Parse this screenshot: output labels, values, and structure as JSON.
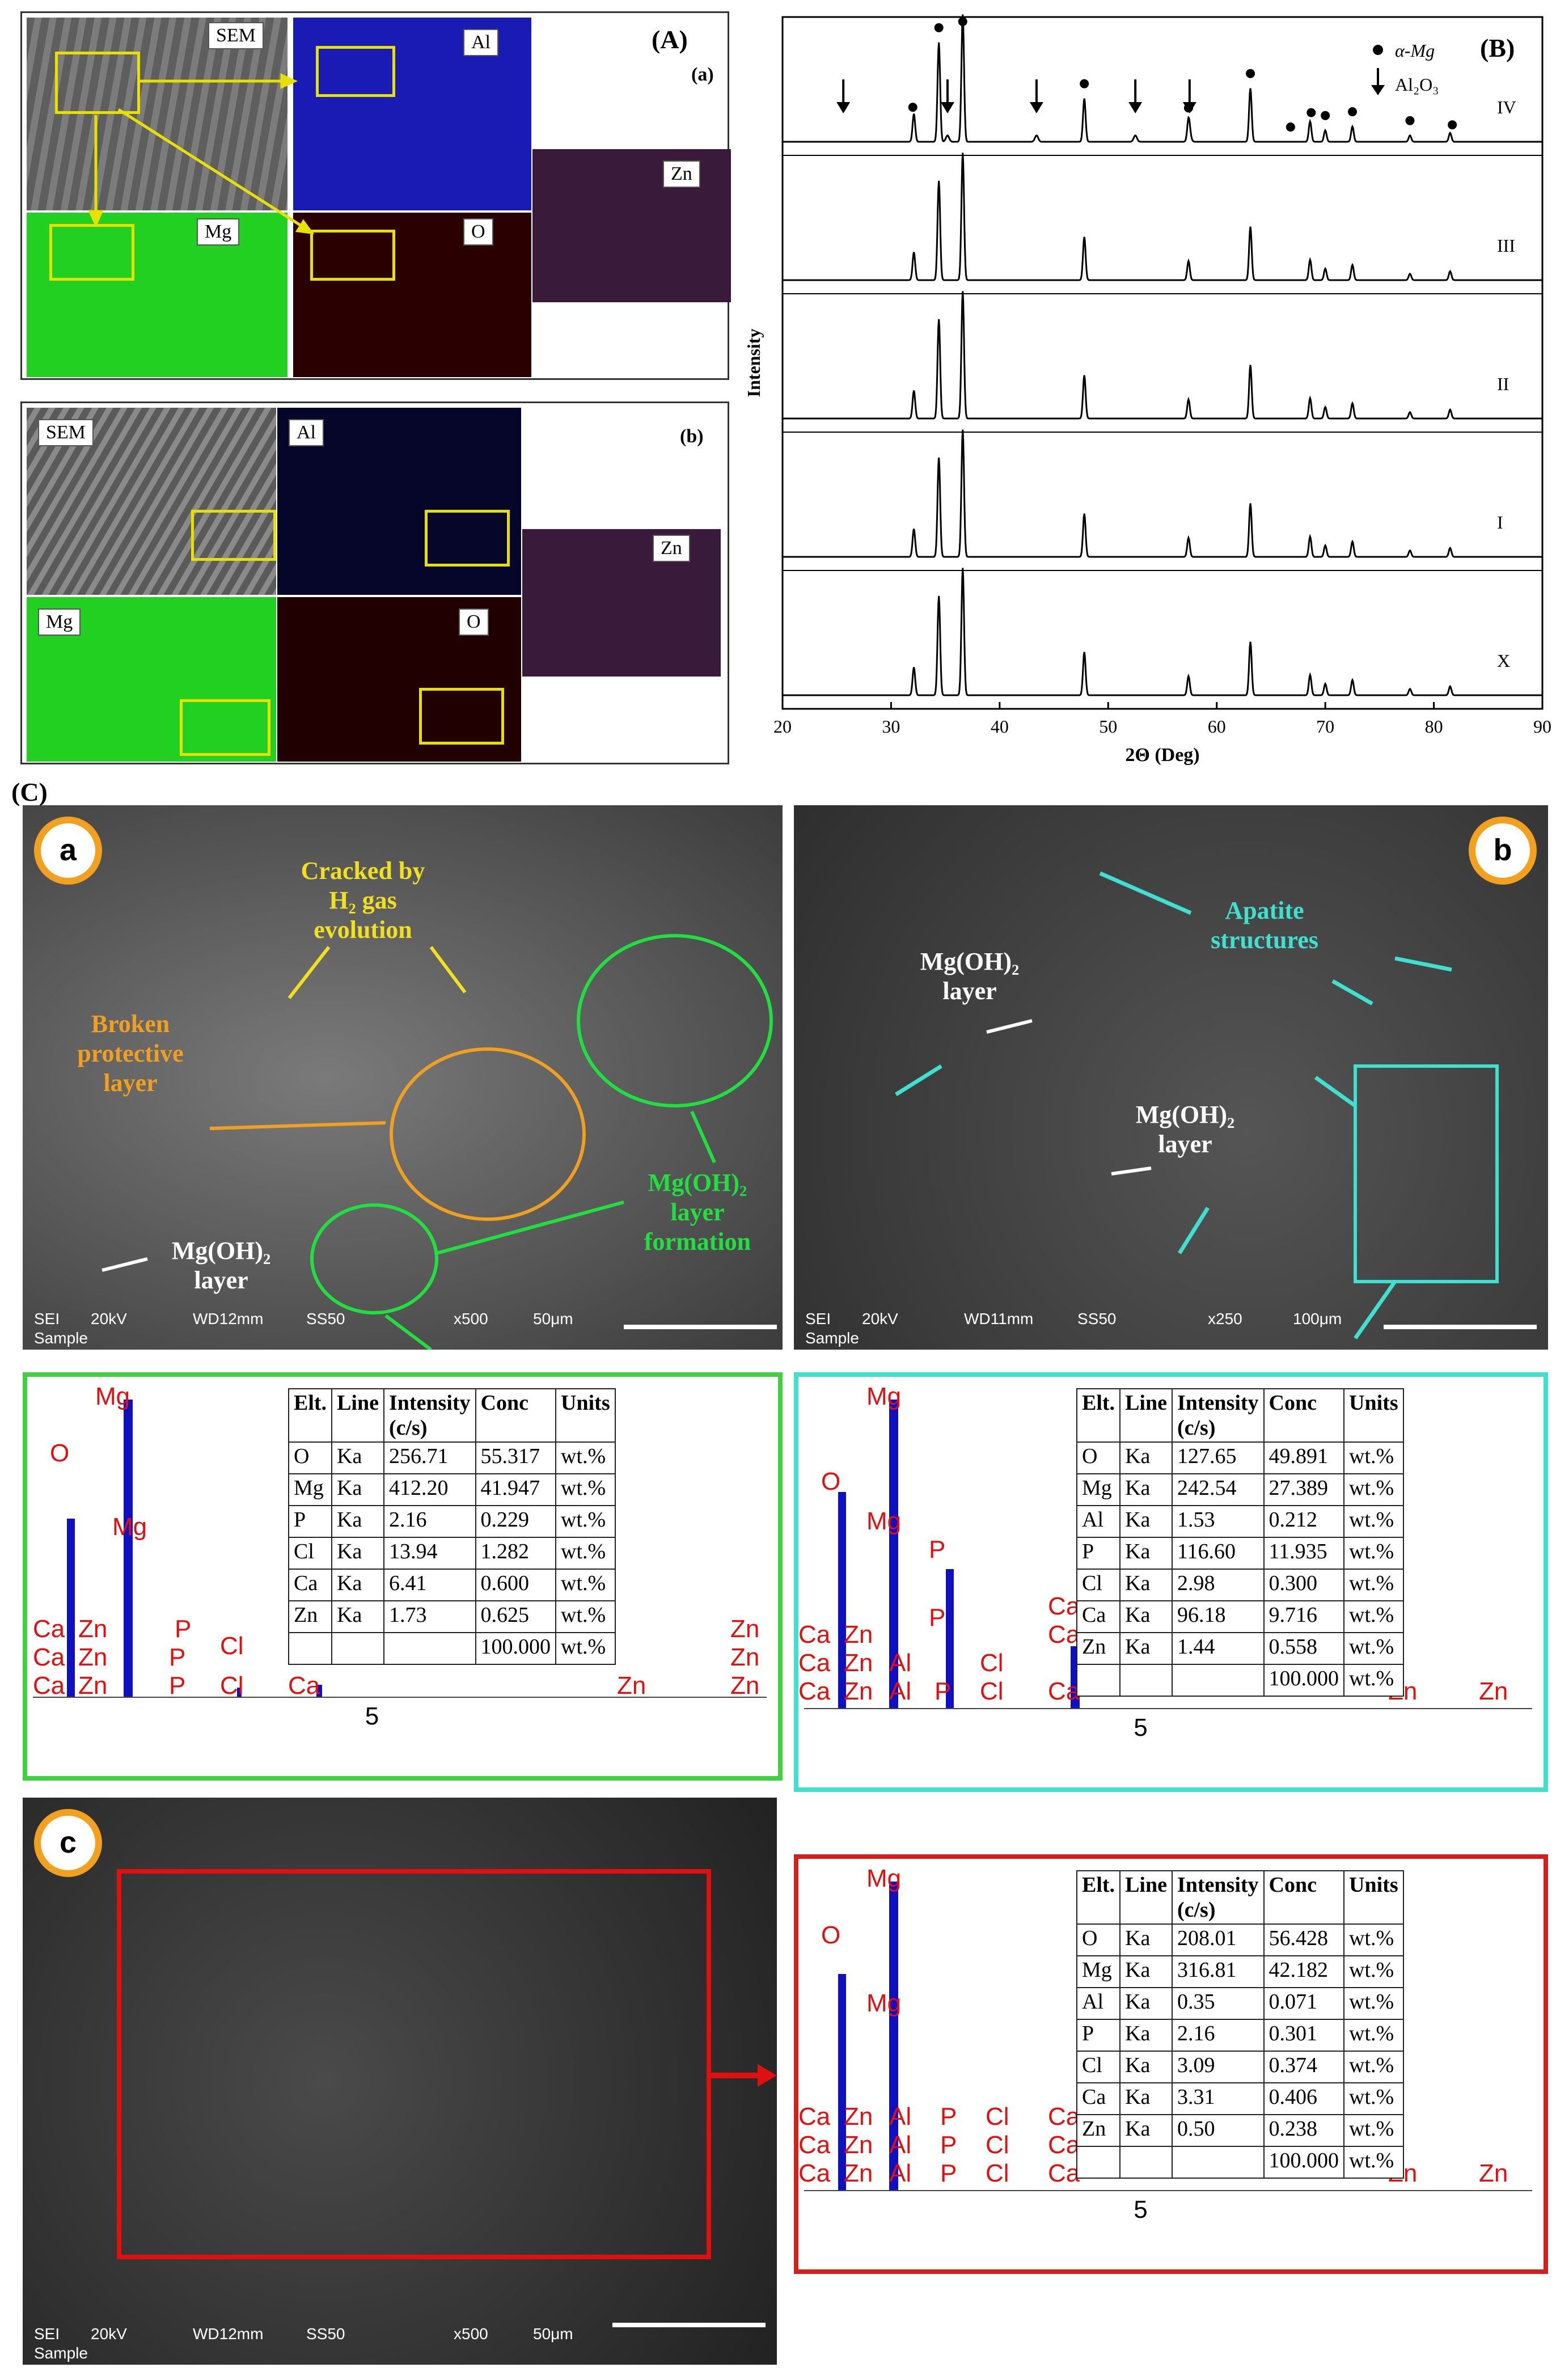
{
  "figure": {
    "panel_A": {
      "label": "(A)",
      "sub_a": {
        "label": "(a)",
        "tiles": {
          "sem": "SEM",
          "al": "Al",
          "mg": "Mg",
          "o": "O",
          "zn": "Zn"
        },
        "colors": {
          "al": "#1a1ab4",
          "mg": "#22d022",
          "o": "#9a1010",
          "zn": "#4a1a4a"
        }
      },
      "sub_b": {
        "label": "(b)",
        "tiles": {
          "sem": "SEM",
          "al": "Al",
          "mg": "Mg",
          "o": "O",
          "zn": "Zn"
        }
      }
    },
    "panel_B": {
      "label": "(B)",
      "legend": {
        "mg": "α-Mg",
        "al2o3": "Al₂O₃"
      }
    },
    "panel_C": {
      "label": "(C)",
      "sub_a": {
        "badge": "a",
        "notes": {
          "cracked": "Cracked by\nH₂ gas\nevolution",
          "broken": "Broken\nprotective\nlayer",
          "mgoh_formation": "Mg(OH)₂\nlayer\nformation",
          "mgoh_layer": "Mg(OH)₂\nlayer"
        },
        "sem_info": {
          "mode": "SEI",
          "kv": "20kV",
          "wd": "WD12mm",
          "ss": "SS50",
          "mag": "x500",
          "scale": "50μm",
          "sample": "Sample"
        }
      },
      "sub_b": {
        "badge": "b",
        "notes": {
          "apatite": "Apatite\nstructures",
          "mgoh1": "Mg(OH)₂\nlayer",
          "mgoh2": "Mg(OH)₂\nlayer"
        },
        "sem_info": {
          "mode": "SEI",
          "kv": "20kV",
          "wd": "WD11mm",
          "ss": "SS50",
          "mag": "x250",
          "scale": "100μm",
          "sample": "Sample"
        }
      },
      "sub_c": {
        "badge": "c",
        "sem_info": {
          "mode": "SEI",
          "kv": "20kV",
          "wd": "WD12mm",
          "ss": "SS50",
          "mag": "x500",
          "scale": "50μm",
          "sample": "Sample"
        }
      },
      "eds_a": {
        "headers": [
          "Elt.",
          "Line",
          "Intensity\n(c/s)",
          "Conc",
          "Units"
        ],
        "rows": [
          [
            "O",
            "Ka",
            "256.71",
            "55.317",
            "wt.%"
          ],
          [
            "Mg",
            "Ka",
            "412.20",
            "41.947",
            "wt.%"
          ],
          [
            "P",
            "Ka",
            "2.16",
            "0.229",
            "wt.%"
          ],
          [
            "Cl",
            "Ka",
            "13.94",
            "1.282",
            "wt.%"
          ],
          [
            "Ca",
            "Ka",
            "6.41",
            "0.600",
            "wt.%"
          ],
          [
            "Zn",
            "Ka",
            "1.73",
            "0.625",
            "wt.%"
          ],
          [
            "",
            "",
            "",
            "100.000",
            "wt.%"
          ]
        ],
        "axis_tick": "5"
      },
      "eds_b": {
        "headers": [
          "Elt.",
          "Line",
          "Intensity\n(c/s)",
          "Conc",
          "Units"
        ],
        "rows": [
          [
            "O",
            "Ka",
            "127.65",
            "49.891",
            "wt.%"
          ],
          [
            "Mg",
            "Ka",
            "242.54",
            "27.389",
            "wt.%"
          ],
          [
            "Al",
            "Ka",
            "1.53",
            "0.212",
            "wt.%"
          ],
          [
            "P",
            "Ka",
            "116.60",
            "11.935",
            "wt.%"
          ],
          [
            "Cl",
            "Ka",
            "2.98",
            "0.300",
            "wt.%"
          ],
          [
            "Ca",
            "Ka",
            "96.18",
            "9.716",
            "wt.%"
          ],
          [
            "Zn",
            "Ka",
            "1.44",
            "0.558",
            "wt.%"
          ],
          [
            "",
            "",
            "",
            "100.000",
            "wt.%"
          ]
        ],
        "axis_tick": "5"
      },
      "eds_c": {
        "headers": [
          "Elt.",
          "Line",
          "Intensity\n(c/s)",
          "Conc",
          "Units"
        ],
        "rows": [
          [
            "O",
            "Ka",
            "208.01",
            "56.428",
            "wt.%"
          ],
          [
            "Mg",
            "Ka",
            "316.81",
            "42.182",
            "wt.%"
          ],
          [
            "Al",
            "Ka",
            "0.35",
            "0.071",
            "wt.%"
          ],
          [
            "P",
            "Ka",
            "2.16",
            "0.301",
            "wt.%"
          ],
          [
            "Cl",
            "Ka",
            "3.09",
            "0.374",
            "wt.%"
          ],
          [
            "Ca",
            "Ka",
            "3.31",
            "0.406",
            "wt.%"
          ],
          [
            "Zn",
            "Ka",
            "0.50",
            "0.238",
            "wt.%"
          ],
          [
            "",
            "",
            "",
            "100.000",
            "wt.%"
          ]
        ],
        "axis_tick": "5"
      }
    }
  },
  "chart_data": {
    "type": "line",
    "title": "",
    "xlabel": "2Θ (Deg)",
    "ylabel": "Intensity",
    "xlim": [
      20,
      90
    ],
    "xticks": [
      "20",
      "30",
      "40",
      "50",
      "60",
      "70",
      "80",
      "90"
    ],
    "peaks_2theta": [
      32.1,
      34.4,
      36.6,
      47.8,
      57.4,
      63.1,
      68.6,
      70.0,
      72.5,
      77.8,
      81.5
    ],
    "peaks_rel": [
      0.22,
      0.78,
      1.0,
      0.34,
      0.15,
      0.42,
      0.16,
      0.09,
      0.12,
      0.05,
      0.07
    ],
    "al2o3_peaks": [
      35.2,
      43.4,
      52.5,
      57.5
    ],
    "series": [
      {
        "name": "IV"
      },
      {
        "name": "III"
      },
      {
        "name": "II"
      },
      {
        "name": "I"
      },
      {
        "name": "X"
      }
    ],
    "markers": {
      "alpha_mg": [
        32.0,
        34.4,
        36.6,
        47.8,
        57.4,
        63.1,
        66.8,
        68.7,
        70.0,
        72.5,
        77.8,
        81.7
      ],
      "al2o3": [
        25.6,
        35.2,
        43.4,
        52.5,
        57.5
      ]
    },
    "legend": [
      "α-Mg",
      "Al₂O₃"
    ],
    "legend_position": "top-right",
    "grid": false
  }
}
